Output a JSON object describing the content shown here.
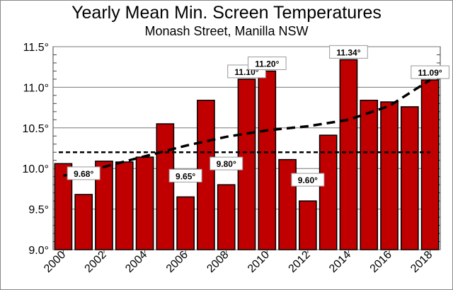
{
  "chart_data": {
    "type": "bar",
    "title": "Yearly Mean Min. Screen Temperatures",
    "subtitle": "Monash Street, Manilla NSW",
    "categories": [
      "2000",
      "2001",
      "2002",
      "2003",
      "2004",
      "2005",
      "2006",
      "2007",
      "2008",
      "2009",
      "2010",
      "2011",
      "2012",
      "2013",
      "2014",
      "2015",
      "2016",
      "2017",
      "2018"
    ],
    "values": [
      10.06,
      9.68,
      10.09,
      10.08,
      10.14,
      10.55,
      9.65,
      10.84,
      9.8,
      11.1,
      11.2,
      10.11,
      9.6,
      10.41,
      11.34,
      10.84,
      10.82,
      10.76,
      11.09
    ],
    "data_labels": {
      "2001": "9.68°",
      "2006": "9.65°",
      "2008": "9.80°",
      "2009": "11.10°",
      "2010": "11.20°",
      "2012": "9.60°",
      "2014": "11.34°",
      "2018": "11.09°"
    },
    "x_tick_labels": [
      "2000",
      "2002",
      "2004",
      "2006",
      "2008",
      "2010",
      "2012",
      "2014",
      "2016",
      "2018"
    ],
    "y_tick_labels": [
      "9.0°",
      "9.5°",
      "10.0°",
      "10.5°",
      "11.0°",
      "11.5°"
    ],
    "y_ticks": [
      9.0,
      9.5,
      10.0,
      10.5,
      11.0,
      11.5
    ],
    "ylim": [
      9.0,
      11.5
    ],
    "mean_line": 10.2,
    "trend_line": {
      "x": [
        2000,
        2002,
        2004,
        2006,
        2008,
        2010,
        2012,
        2014,
        2016,
        2018
      ],
      "y": [
        9.91,
        10.02,
        10.15,
        10.28,
        10.39,
        10.47,
        10.52,
        10.6,
        10.77,
        11.09
      ]
    },
    "grid": "horizontal",
    "bar_color": "#c00000",
    "xlabel": "",
    "ylabel": ""
  }
}
